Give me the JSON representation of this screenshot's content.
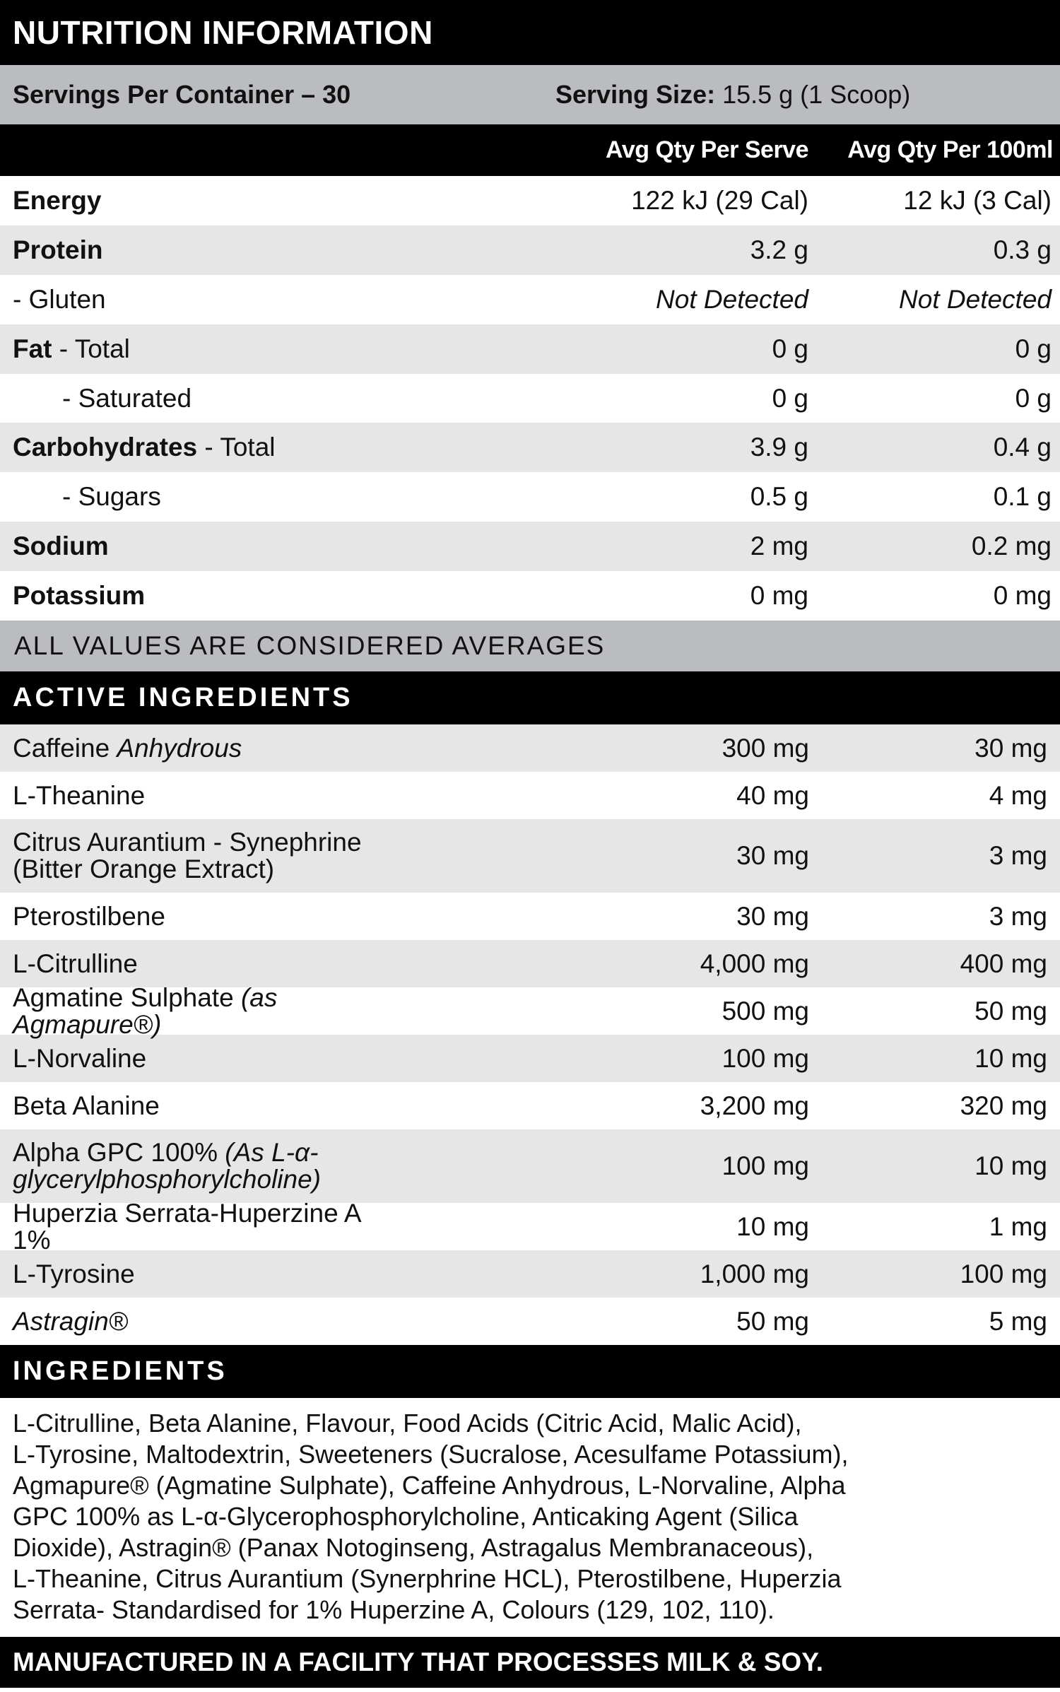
{
  "title": "NUTRITION INFORMATION",
  "servings": {
    "per_container": "Servings Per Container – 30",
    "size_label": "Serving Size:",
    "size_value": "15.5 g (1 Scoop)"
  },
  "columns": {
    "per_serve": "Avg Qty Per Serve",
    "per_100ml": "Avg Qty Per 100ml"
  },
  "nutrition": [
    {
      "bold": "Energy",
      "rest": "",
      "per_serve": "122 kJ (29 Cal)",
      "per_100ml": "12 kJ (3 Cal)"
    },
    {
      "bold": "Protein",
      "rest": "",
      "per_serve": "3.2 g",
      "per_100ml": "0.3 g"
    },
    {
      "bold": "",
      "rest": "- Gluten",
      "per_serve": "Not Detected",
      "per_100ml": "Not Detected",
      "italic_values": true
    },
    {
      "bold": "Fat",
      "rest": " - Total",
      "per_serve": "0 g",
      "per_100ml": "0 g"
    },
    {
      "bold": "",
      "rest": "- Saturated",
      "per_serve": "0 g",
      "per_100ml": "0 g",
      "indent": true
    },
    {
      "bold": "Carbohydrates",
      "rest": " - Total",
      "per_serve": "3.9 g",
      "per_100ml": "0.4 g"
    },
    {
      "bold": "",
      "rest": "- Sugars",
      "per_serve": "0.5 g",
      "per_100ml": "0.1 g",
      "indent": true
    },
    {
      "bold": "Sodium",
      "rest": "",
      "per_serve": "2 mg",
      "per_100ml": "0.2 mg"
    },
    {
      "bold": "Potassium",
      "rest": "",
      "per_serve": "0 mg",
      "per_100ml": "0 mg"
    }
  ],
  "averages_note": "ALL VALUES ARE CONSIDERED AVERAGES",
  "active_title": "ACTIVE INGREDIENTS",
  "active": [
    {
      "name": "Caffeine ",
      "italic": "Anhydrous",
      "per_serve": "300 mg",
      "per_100ml": "30 mg"
    },
    {
      "name": "L-Theanine",
      "italic": "",
      "per_serve": "40 mg",
      "per_100ml": "4 mg"
    },
    {
      "name": "Citrus Aurantium - Synephrine (Bitter Orange Extract)",
      "italic": "",
      "per_serve": "30 mg",
      "per_100ml": "3 mg"
    },
    {
      "name": "Pterostilbene",
      "italic": "",
      "per_serve": "30 mg",
      "per_100ml": "3 mg"
    },
    {
      "name": "L-Citrulline",
      "italic": "",
      "per_serve": "4,000 mg",
      "per_100ml": "400 mg"
    },
    {
      "name": "Agmatine Sulphate ",
      "italic": "(as Agmapure®)",
      "per_serve": "500 mg",
      "per_100ml": "50 mg"
    },
    {
      "name": "L-Norvaline",
      "italic": "",
      "per_serve": "100 mg",
      "per_100ml": "10 mg"
    },
    {
      "name": "Beta Alanine",
      "italic": "",
      "per_serve": "3,200 mg",
      "per_100ml": "320 mg"
    },
    {
      "name": "Alpha GPC 100% ",
      "italic": "(As L-α-glycerylphosphorylcholine)",
      "per_serve": "100 mg",
      "per_100ml": "10 mg"
    },
    {
      "name": "Huperzia Serrata-Huperzine A 1%",
      "italic": "",
      "per_serve": "10 mg",
      "per_100ml": "1 mg"
    },
    {
      "name": "L-Tyrosine",
      "italic": "",
      "per_serve": "1,000 mg",
      "per_100ml": "100 mg"
    },
    {
      "name": "",
      "italic": "Astragin®",
      "per_serve": "50 mg",
      "per_100ml": "5 mg"
    }
  ],
  "ingredients_title": "INGREDIENTS",
  "ingredients_lines": [
    "L-Citrulline, Beta Alanine, Flavour, Food Acids (Citric Acid, Malic Acid),",
    "L-Tyrosine, Maltodextrin, Sweeteners (Sucralose, Acesulfame Potassium),",
    "Agmapure® (Agmatine Sulphate), Caffeine Anhydrous, L-Norvaline, Alpha",
    "GPC 100% as L-α-Glycerophosphorylcholine, Anticaking Agent (Silica",
    "Dioxide), Astragin® (Panax Notoginseng, Astragalus Membranaceous),",
    "L-Theanine, Citrus Aurantium (Synerphrine HCL), Pterostilbene, Huperzia",
    "Serrata- Standardised for 1% Huperzine A, Colours (129, 102, 110)."
  ],
  "footer": "MANUFACTURED IN A FACILITY THAT PROCESSES MILK & SOY.",
  "colors": {
    "black": "#000000",
    "header_gray": "#bbbcc0",
    "row_gray": "#e6e6e6"
  }
}
